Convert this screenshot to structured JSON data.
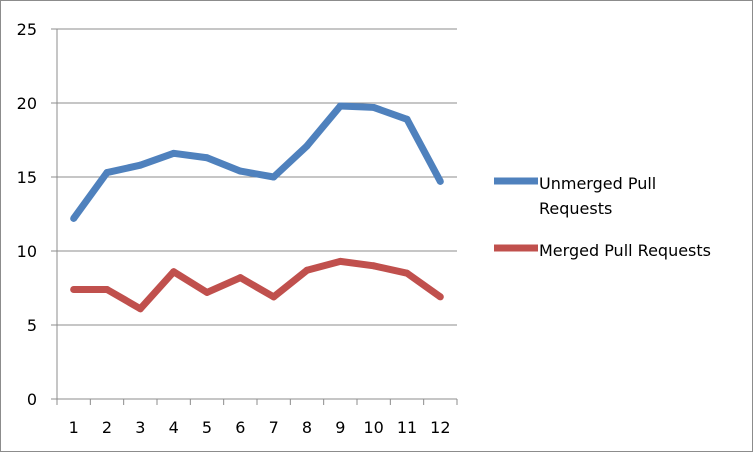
{
  "chart_data": {
    "type": "line",
    "title": "",
    "xlabel": "",
    "ylabel": "",
    "categories": [
      "1",
      "2",
      "3",
      "4",
      "5",
      "6",
      "7",
      "8",
      "9",
      "10",
      "11",
      "12"
    ],
    "ylim": [
      0,
      25
    ],
    "yticks": [
      "0",
      "5",
      "10",
      "15",
      "20",
      "25"
    ],
    "grid": "horizontal",
    "legend_position": "right",
    "series": [
      {
        "name": "Unmerged Pull Requests",
        "legend_lines": [
          "Unmerged Pull",
          "Requests"
        ],
        "color": "#4f81bd",
        "values": [
          12.2,
          15.3,
          15.8,
          16.6,
          16.3,
          15.4,
          15.0,
          17.1,
          19.8,
          19.7,
          18.9,
          14.7
        ]
      },
      {
        "name": "Merged Pull Requests",
        "legend_lines": [
          "Merged Pull Requests"
        ],
        "color": "#c0504d",
        "values": [
          7.4,
          7.4,
          6.1,
          8.6,
          7.2,
          8.2,
          6.9,
          8.7,
          9.3,
          9.0,
          8.5,
          6.9
        ]
      }
    ]
  }
}
